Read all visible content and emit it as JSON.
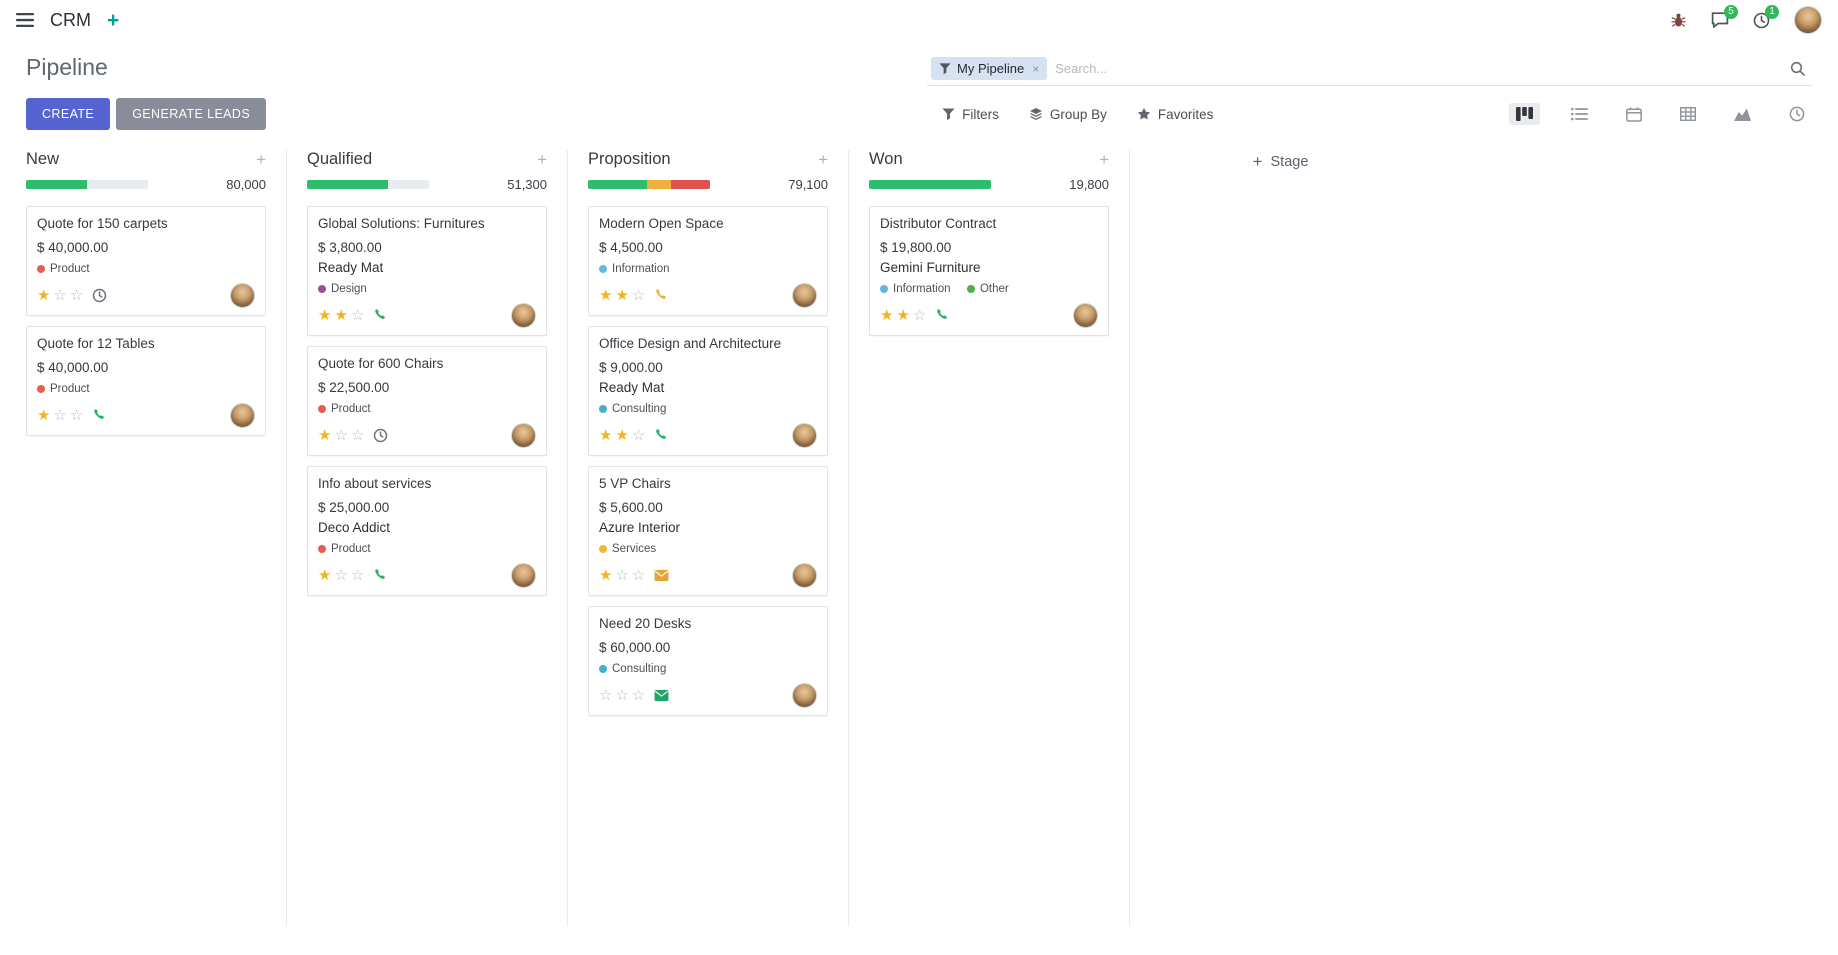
{
  "navbar": {
    "app_name": "CRM",
    "plus": "+",
    "message_badge": "5",
    "activity_badge": "1"
  },
  "control_panel": {
    "title": "Pipeline",
    "create_label": "CREATE",
    "generate_leads_label": "GENERATE LEADS",
    "search": {
      "facet_label": "My Pipeline",
      "facet_remove": "×",
      "placeholder": "Search..."
    },
    "filters_label": "Filters",
    "group_by_label": "Group By",
    "favorites_label": "Favorites"
  },
  "board": {
    "add_stage_plus": "+",
    "add_stage_label": "Stage",
    "columns": [
      {
        "name": "New",
        "quick_add": "+",
        "total": "80,000",
        "progress": [
          {
            "color": "#2ebd6b",
            "width": "50%"
          }
        ],
        "cards": [
          {
            "title": "Quote for 150 carpets",
            "amount": "$ 40,000.00",
            "tags": [
              {
                "label": "Product",
                "color": "#e75d51"
              }
            ],
            "stars": 1,
            "activity": {
              "icon": "clock",
              "color": "#6c757d"
            }
          },
          {
            "title": "Quote for 12 Tables",
            "amount": "$ 40,000.00",
            "tags": [
              {
                "label": "Product",
                "color": "#e75d51"
              }
            ],
            "stars": 1,
            "activity": {
              "icon": "phone",
              "color": "#28b463"
            }
          }
        ]
      },
      {
        "name": "Qualified",
        "quick_add": "+",
        "total": "51,300",
        "progress": [
          {
            "color": "#2ebd6b",
            "width": "66%"
          }
        ],
        "cards": [
          {
            "title": "Global Solutions: Furnitures",
            "amount": "$ 3,800.00",
            "partner": "Ready Mat",
            "tags": [
              {
                "label": "Design",
                "color": "#9a4f96"
              }
            ],
            "stars": 2,
            "activity": {
              "icon": "phone",
              "color": "#28b463"
            }
          },
          {
            "title": "Quote for 600 Chairs",
            "amount": "$ 22,500.00",
            "tags": [
              {
                "label": "Product",
                "color": "#e75d51"
              }
            ],
            "stars": 1,
            "activity": {
              "icon": "clock",
              "color": "#6c757d"
            }
          },
          {
            "title": "Info about services",
            "amount": "$ 25,000.00",
            "partner": "Deco Addict",
            "tags": [
              {
                "label": "Product",
                "color": "#e75d51"
              }
            ],
            "stars": 1,
            "activity": {
              "icon": "phone",
              "color": "#28b463"
            }
          }
        ]
      },
      {
        "name": "Proposition",
        "quick_add": "+",
        "total": "79,100",
        "progress": [
          {
            "color": "#2ebd6b",
            "width": "48%"
          },
          {
            "color": "#efb03f",
            "width": "20%"
          },
          {
            "color": "#e0524e",
            "width": "32%"
          }
        ],
        "cards": [
          {
            "title": "Modern Open Space",
            "amount": "$ 4,500.00",
            "tags": [
              {
                "label": "Information",
                "color": "#64b5e2"
              }
            ],
            "stars": 2,
            "activity": {
              "icon": "phone",
              "color": "#efb03f"
            }
          },
          {
            "title": "Office Design and Architecture",
            "amount": "$ 9,000.00",
            "partner": "Ready Mat",
            "tags": [
              {
                "label": "Consulting",
                "color": "#45b0c7"
              }
            ],
            "stars": 2,
            "activity": {
              "icon": "phone",
              "color": "#28b463"
            }
          },
          {
            "title": "5 VP Chairs",
            "amount": "$ 5,600.00",
            "partner": "Azure Interior",
            "tags": [
              {
                "label": "Services",
                "color": "#edb73e"
              }
            ],
            "stars": 1,
            "activity": {
              "icon": "envelope",
              "color": "#e2a63d"
            }
          },
          {
            "title": "Need 20 Desks",
            "amount": "$ 60,000.00",
            "tags": [
              {
                "label": "Consulting",
                "color": "#45b0c7"
              }
            ],
            "stars": 0,
            "activity": {
              "icon": "envelope",
              "color": "#21a567"
            }
          }
        ]
      },
      {
        "name": "Won",
        "quick_add": "+",
        "total": "19,800",
        "progress": [
          {
            "color": "#2ebd6b",
            "width": "100%"
          }
        ],
        "cards": [
          {
            "title": "Distributor Contract",
            "amount": "$ 19,800.00",
            "partner": "Gemini Furniture",
            "tags": [
              {
                "label": "Information",
                "color": "#64b5e2"
              },
              {
                "label": "Other",
                "color": "#4caf50"
              }
            ],
            "stars": 2,
            "activity": {
              "icon": "phone",
              "color": "#28b463"
            }
          }
        ]
      }
    ]
  }
}
